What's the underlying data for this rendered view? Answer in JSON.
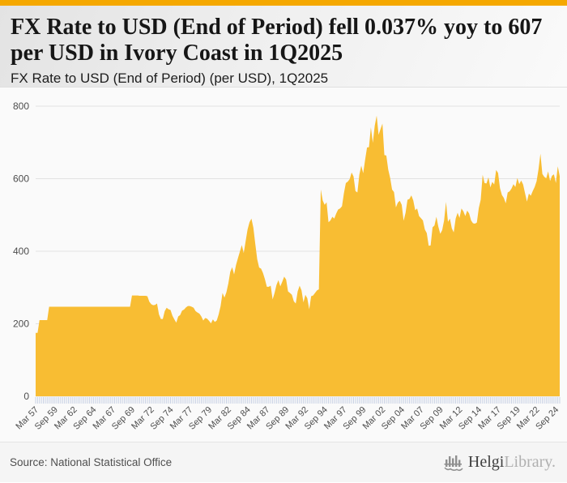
{
  "page": {
    "accent_color": "#F5A800",
    "title": "FX Rate to USD (End of Period) fell 0.037% yoy to 607 per USD in Ivory Coast in 1Q2025",
    "subtitle": "FX Rate to USD (End of Period) (per USD), 1Q2025"
  },
  "footer": {
    "source": "Source: National Statistical Office",
    "logo": {
      "brand_primary": "Helgi",
      "brand_secondary": "Library.",
      "icon": "helgi-bars-logo-icon",
      "icon_color": "#8f8f8f"
    }
  },
  "chart_data": {
    "type": "area",
    "title": "FX Rate to USD (End of Period) (per USD), 1Q2025",
    "ylabel": "",
    "xlabel": "",
    "unit": "per USD",
    "frequency": "quarterly",
    "period_start": "Mar 1957",
    "period_end": "Mar 2025",
    "ylim": [
      0,
      800
    ],
    "y_ticks": [
      0,
      200,
      400,
      600,
      800
    ],
    "grid": true,
    "legend": "none",
    "area_color": "#F8BD33",
    "grid_color": "#e2e2e2",
    "tick_color": "#c8d1e4",
    "axis_text_color": "#4d4d4d",
    "x_tick_every": 10,
    "x_tick_labels": [
      "Mar 57",
      "Sep 59",
      "Mar 62",
      "Sep 64",
      "Mar 67",
      "Sep 69",
      "Mar 72",
      "Sep 74",
      "Mar 77",
      "Sep 79",
      "Mar 82",
      "Sep 84",
      "Mar 87",
      "Sep 89",
      "Mar 92",
      "Sep 94",
      "Mar 97",
      "Sep 99",
      "Mar 02",
      "Sep 04",
      "Mar 07",
      "Sep 09",
      "Mar 12",
      "Sep 14",
      "Mar 17",
      "Sep 19",
      "Mar 22",
      "Sep 24"
    ],
    "values": [
      175,
      175,
      210,
      210,
      210,
      210,
      210,
      247,
      247,
      247,
      247,
      247,
      247,
      247,
      247,
      247,
      247,
      247,
      247,
      247,
      247,
      247,
      247,
      247,
      247,
      247,
      247,
      247,
      247,
      247,
      247,
      247,
      247,
      247,
      247,
      247,
      247,
      247,
      247,
      247,
      247,
      247,
      247,
      247,
      247,
      247,
      247,
      247,
      247,
      247,
      278,
      278,
      278,
      278,
      277,
      277,
      277,
      277,
      276,
      261,
      254,
      251,
      252,
      256,
      226,
      213,
      213,
      235,
      244,
      240,
      238,
      222,
      212,
      203,
      220,
      224,
      236,
      239,
      245,
      249,
      249,
      247,
      244,
      235,
      231,
      228,
      220,
      209,
      216,
      214,
      208,
      201,
      212,
      205,
      209,
      226,
      249,
      285,
      272,
      287,
      311,
      343,
      356,
      336,
      362,
      381,
      399,
      417,
      395,
      428,
      460,
      480,
      490,
      465,
      420,
      378,
      355,
      352,
      340,
      323,
      302,
      302,
      305,
      267,
      285,
      307,
      320,
      303,
      316,
      330,
      322,
      289,
      285,
      280,
      262,
      256,
      289,
      305,
      292,
      259,
      280,
      270,
      240,
      276,
      278,
      285,
      292,
      295,
      570,
      540,
      528,
      535,
      480,
      485,
      495,
      490,
      504,
      515,
      518,
      524,
      560,
      588,
      592,
      599,
      617,
      606,
      566,
      562,
      611,
      636,
      615,
      652,
      686,
      687,
      742,
      699,
      746,
      774,
      721,
      737,
      752,
      665,
      664,
      625,
      602,
      570,
      563,
      521,
      534,
      539,
      528,
      484,
      506,
      542,
      544,
      554,
      540,
      513,
      518,
      497,
      491,
      485,
      460,
      450,
      415,
      416,
      466,
      471,
      495,
      468,
      448,
      458,
      485,
      536,
      481,
      490,
      463,
      452,
      490,
      506,
      492,
      518,
      510,
      497,
      512,
      504,
      485,
      477,
      476,
      479,
      519,
      542,
      611,
      588,
      587,
      604,
      576,
      591,
      584,
      624,
      616,
      574,
      555,
      547,
      532,
      562,
      565,
      573,
      585,
      577,
      602,
      585,
      595,
      584,
      560,
      537,
      559,
      553,
      566,
      577,
      593,
      626,
      669,
      613,
      605,
      601,
      620,
      594,
      608,
      612,
      588,
      634,
      607
    ]
  }
}
